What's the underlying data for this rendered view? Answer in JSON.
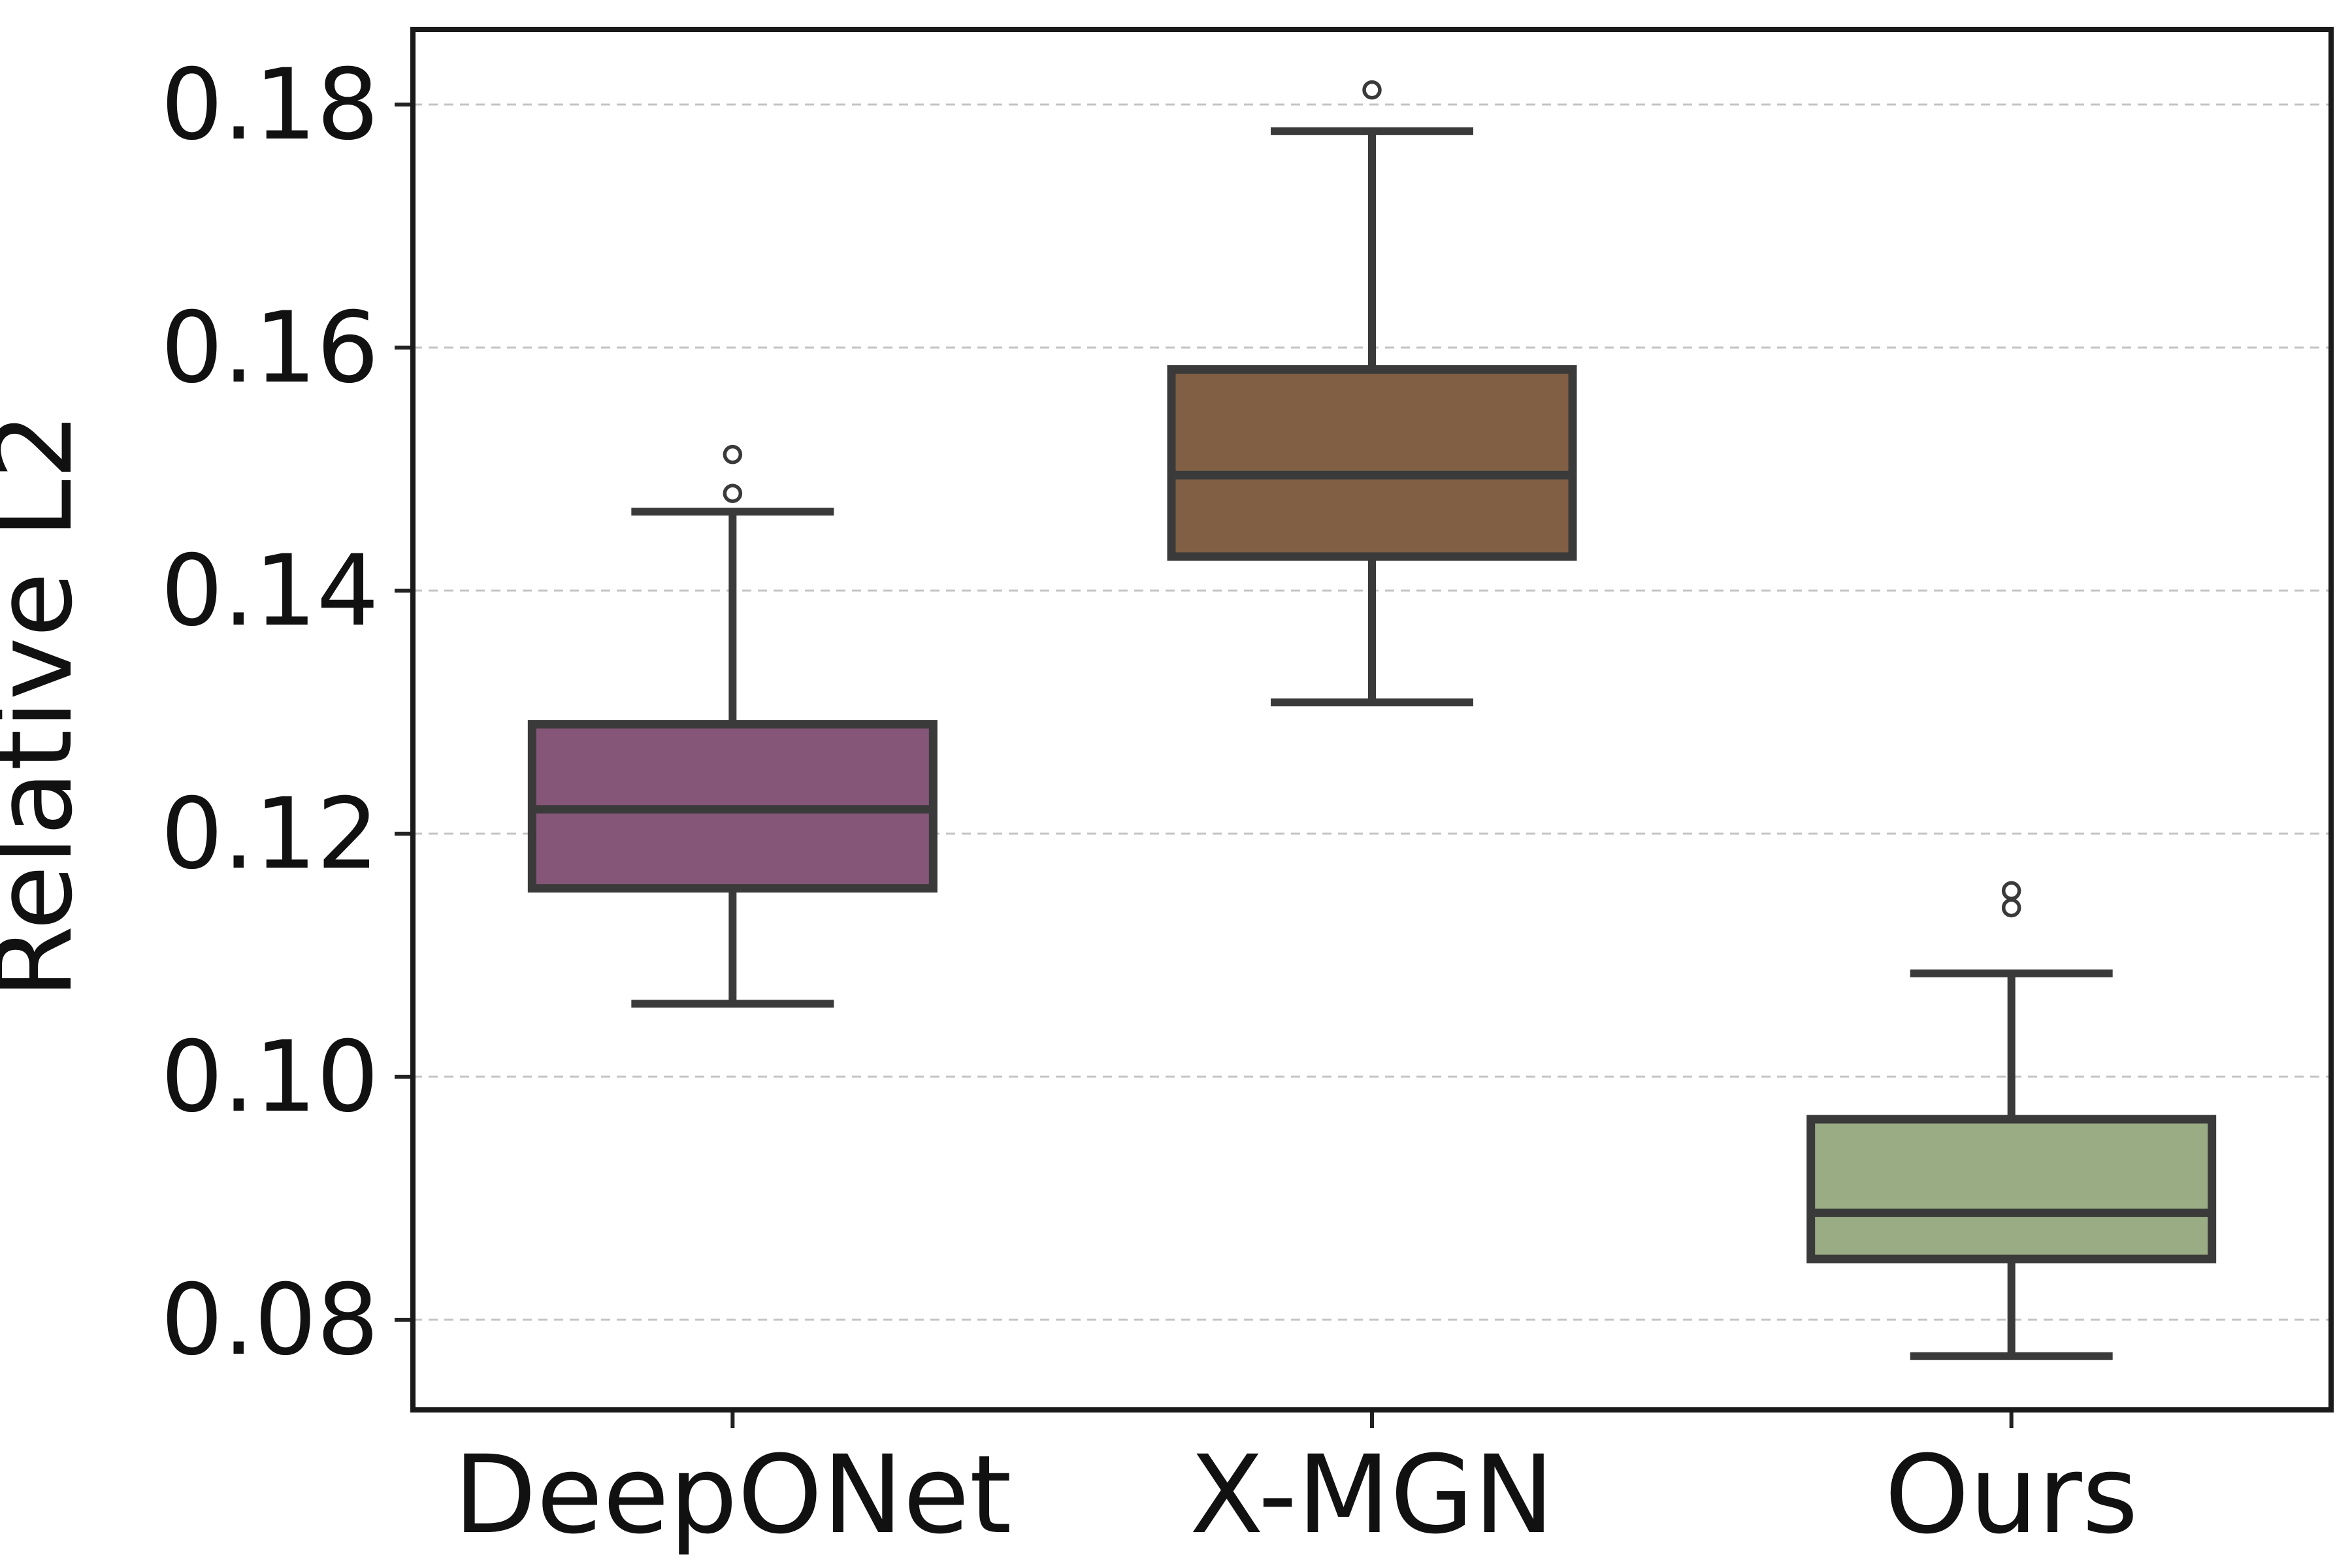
{
  "figure": {
    "background": "#ffffff",
    "spine_color": "#1a1a1a",
    "grid_color": "#c4c4c4",
    "tick_color": "#222222",
    "box_edge_color": "#3a3a3a",
    "outlier_stroke_color": "#3a3a3a"
  },
  "chart_data": {
    "type": "box",
    "title": "",
    "xlabel": "",
    "ylabel": "Relative L2",
    "categories": [
      "DeepONet",
      "X-MGN",
      "Ours"
    ],
    "ytick_values": [
      0.08,
      0.1,
      0.12,
      0.14,
      0.16,
      0.18
    ],
    "ytick_labels": [
      "0.08",
      "0.10",
      "0.12",
      "0.14",
      "0.16",
      "0.18"
    ],
    "ylim": [
      0.0727,
      0.1862
    ],
    "grid": "horizontal-dashed",
    "legend": "none",
    "series": [
      {
        "name": "DeepONet",
        "color": "#855677",
        "whisker_low": 0.106,
        "q1": 0.1155,
        "median": 0.122,
        "q3": 0.129,
        "whisker_high": 0.1465,
        "outliers": [
          0.148,
          0.1512
        ]
      },
      {
        "name": "X-MGN",
        "color": "#805f44",
        "whisker_low": 0.1308,
        "q1": 0.1428,
        "median": 0.1495,
        "q3": 0.1582,
        "whisker_high": 0.1778,
        "outliers": [
          0.1812
        ]
      },
      {
        "name": "Ours",
        "color": "#9aac84",
        "whisker_low": 0.077,
        "q1": 0.085,
        "median": 0.0888,
        "q3": 0.0965,
        "whisker_high": 0.1085,
        "outliers": [
          0.1139,
          0.1153
        ]
      }
    ]
  }
}
